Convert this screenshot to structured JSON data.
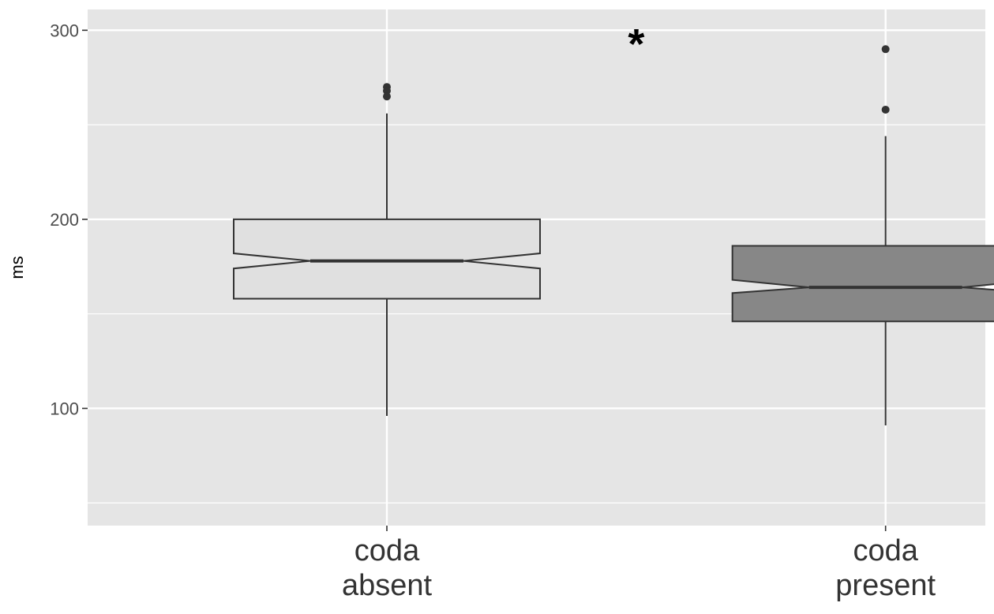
{
  "chart_data": {
    "type": "boxplot",
    "notched": true,
    "title": "",
    "xlabel": "",
    "ylabel": "ms",
    "ylim": [
      38,
      311
    ],
    "yticks": [
      100,
      200,
      300
    ],
    "grid": true,
    "legend": "none",
    "categories": [
      {
        "lines": [
          "coda",
          "absent"
        ]
      },
      {
        "lines": [
          "coda",
          "present"
        ]
      }
    ],
    "boxes": [
      {
        "whisker_low": 96,
        "q1": 158,
        "median": 178,
        "q3": 200,
        "whisker_high": 256,
        "notch_low": 174,
        "notch_high": 182,
        "outliers": [
          270,
          268,
          265
        ],
        "fill": "#e0e0e0"
      },
      {
        "whisker_low": 91,
        "q1": 146,
        "median": 164,
        "q3": 186,
        "whisker_high": 244,
        "notch_low": 161,
        "notch_high": 168,
        "outliers": [
          290,
          258
        ],
        "fill": "#878787"
      }
    ],
    "annotations": [
      {
        "text": "*",
        "x": 1.5,
        "y": 296
      }
    ]
  },
  "colors": {
    "panel": "#e5e5e5",
    "grid": "#ffffff",
    "box_stroke": "#333333",
    "outlier": "#333333"
  }
}
